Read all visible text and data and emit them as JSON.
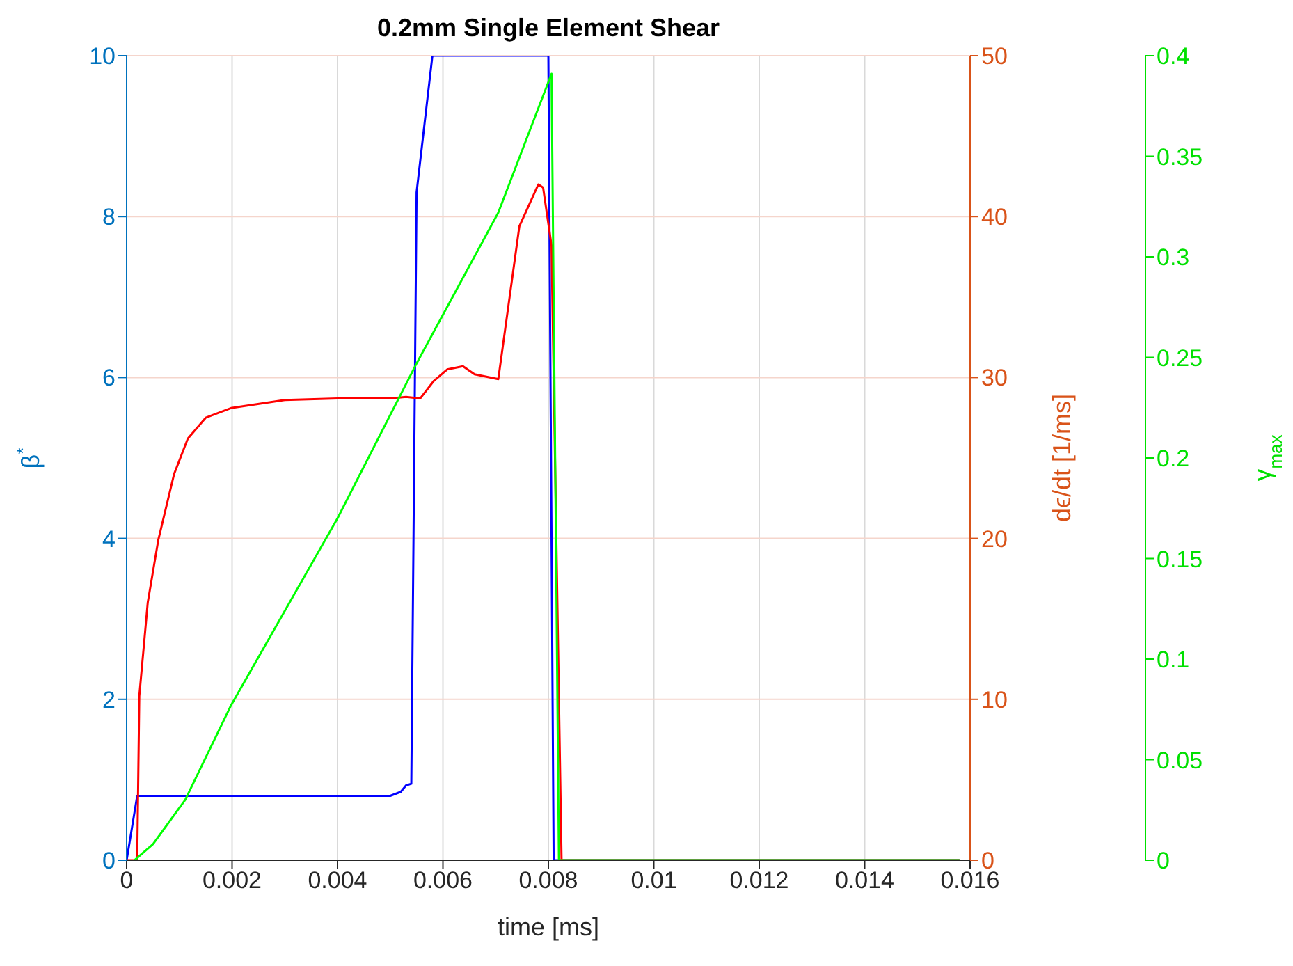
{
  "chart_data": {
    "type": "line",
    "title": "0.2mm Single Element Shear",
    "xlabel": "time [ms]",
    "ylabel": "β$^{*}$",
    "y2label": "dϵ/dt [1/ms]",
    "y3label": "γ$_{max}$",
    "xlim": [
      0,
      0.016
    ],
    "xticks": [
      0,
      0.002,
      0.004,
      0.006,
      0.008,
      0.01,
      0.012,
      0.014,
      0.016
    ],
    "ylim": [
      0,
      10
    ],
    "yticks": [
      0,
      2,
      4,
      6,
      8,
      10
    ],
    "y2lim": [
      0,
      50
    ],
    "y2ticks": [
      0,
      10,
      20,
      30,
      40,
      50
    ],
    "y3lim": [
      0,
      0.4
    ],
    "y3ticks": [
      0,
      0.05,
      0.1,
      0.15,
      0.2,
      0.25,
      0.3,
      0.35,
      0.4
    ],
    "grid": true,
    "marker": "none",
    "line_style": "solid",
    "series": [
      {
        "color": "#0000ff",
        "x": [
          0,
          0.0002,
          0.005,
          0.0052,
          0.0053,
          0.0054,
          0.0055,
          0.0058,
          0.008,
          0.0081,
          0.0158
        ],
        "values": [
          0,
          0.8,
          0.8,
          0.85,
          0.93,
          0.95,
          8.3,
          10,
          10,
          0,
          0
        ]
      },
      {
        "color": "#ff0000",
        "axis": "y2",
        "x": [
          0,
          0.0002,
          0.00024,
          0.0004,
          0.0006,
          0.0009,
          0.00116,
          0.0015,
          0.00198,
          0.003,
          0.004,
          0.005,
          0.0053,
          0.00557,
          0.00583,
          0.00608,
          0.00638,
          0.0066,
          0.00705,
          0.00745,
          0.00781,
          0.0079,
          0.00806,
          0.00825,
          0.0158
        ],
        "values": [
          0,
          0,
          10.2,
          16,
          19.9,
          24,
          26.2,
          27.5,
          28.1,
          28.6,
          28.7,
          28.7,
          28.8,
          28.7,
          29.8,
          30.5,
          30.7,
          30.2,
          29.9,
          39.4,
          42,
          41.8,
          38.2,
          0,
          0
        ]
      },
      {
        "color": "#00ff00",
        "axis": "y3",
        "x": [
          0.00015,
          0.0005,
          0.00111,
          0.00198,
          0.003,
          0.004,
          0.0055,
          0.00705,
          0.00806,
          0.0082,
          0.0158
        ],
        "values": [
          0,
          0.008,
          0.03,
          0.077,
          0.124,
          0.17,
          0.247,
          0.322,
          0.391,
          0,
          0
        ]
      }
    ]
  }
}
